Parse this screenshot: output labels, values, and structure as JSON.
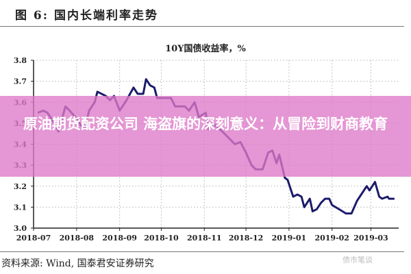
{
  "figure_title": "图 6:  国内长端利率走势",
  "source": "资料来源: Wind, 国泰君安证券研究",
  "watermark": "债市笔谈",
  "banner": {
    "text": "原油期货配资公司 海盗旗的深刻意义：从冒险到财商教育"
  },
  "colors": {
    "line": "#1b1b6b",
    "banner": "#de78c8",
    "grid": "#b0b0b0"
  },
  "chart_data": {
    "type": "line",
    "title": "10Y国债收益率，%",
    "xlabel": "",
    "ylabel": "",
    "ylim": [
      3.0,
      3.8
    ],
    "yticks": [
      "3.0",
      "3.1",
      "3.2",
      "3.3",
      "3.4",
      "3.5",
      "3.6",
      "3.7",
      "3.8"
    ],
    "xlim": [
      "2018-07-01",
      "2019-03-21"
    ],
    "xticks": [
      "2018-07",
      "2018-08",
      "2018-09",
      "2018-10",
      "2018-11",
      "2018-12",
      "2019-01",
      "2019-02",
      "2019-03"
    ],
    "grid": true,
    "series": [
      {
        "x": [
          "2018-07-04",
          "2018-07-08",
          "2018-07-11",
          "2018-07-15",
          "2018-07-19",
          "2018-07-21",
          "2018-07-24",
          "2018-07-27",
          "2018-07-31",
          "2018-08-04",
          "2018-08-07",
          "2018-08-10",
          "2018-08-14",
          "2018-08-16",
          "2018-08-22",
          "2018-08-25",
          "2018-08-28",
          "2018-09-01",
          "2018-09-06",
          "2018-09-11",
          "2018-09-14",
          "2018-09-18",
          "2018-09-20",
          "2018-09-23",
          "2018-09-26",
          "2018-09-28",
          "2018-10-08",
          "2018-10-11",
          "2018-10-18",
          "2018-10-21",
          "2018-10-25",
          "2018-10-28",
          "2018-11-02",
          "2018-11-04",
          "2018-11-07",
          "2018-11-14",
          "2018-11-23",
          "2018-11-27",
          "2018-12-01",
          "2018-12-05",
          "2018-12-08",
          "2018-12-13",
          "2018-12-17",
          "2018-12-20",
          "2018-12-23",
          "2018-12-25",
          "2018-12-29",
          "2018-12-31",
          "2019-01-04",
          "2019-01-07",
          "2019-01-10",
          "2019-01-12",
          "2019-01-16",
          "2019-01-18",
          "2019-01-21",
          "2019-01-24",
          "2019-01-27",
          "2019-01-30",
          "2019-02-01",
          "2019-02-06",
          "2019-02-11",
          "2019-02-15",
          "2019-02-19",
          "2019-02-22",
          "2019-02-26",
          "2019-02-28",
          "2019-03-04",
          "2019-03-07",
          "2019-03-09",
          "2019-03-13",
          "2019-03-14",
          "2019-03-18"
        ],
        "y": [
          3.55,
          3.56,
          3.55,
          3.51,
          3.46,
          3.51,
          3.58,
          3.56,
          3.53,
          3.49,
          3.48,
          3.56,
          3.6,
          3.65,
          3.63,
          3.61,
          3.63,
          3.56,
          3.61,
          3.67,
          3.64,
          3.64,
          3.71,
          3.68,
          3.67,
          3.62,
          3.62,
          3.58,
          3.58,
          3.56,
          3.6,
          3.53,
          3.55,
          3.47,
          3.5,
          3.46,
          3.4,
          3.41,
          3.36,
          3.3,
          3.28,
          3.28,
          3.36,
          3.37,
          3.31,
          3.35,
          3.24,
          3.23,
          3.15,
          3.16,
          3.15,
          3.1,
          3.14,
          3.08,
          3.09,
          3.12,
          3.14,
          3.14,
          3.11,
          3.09,
          3.07,
          3.07,
          3.13,
          3.16,
          3.2,
          3.18,
          3.22,
          3.15,
          3.14,
          3.15,
          3.14,
          3.14
        ]
      }
    ]
  }
}
